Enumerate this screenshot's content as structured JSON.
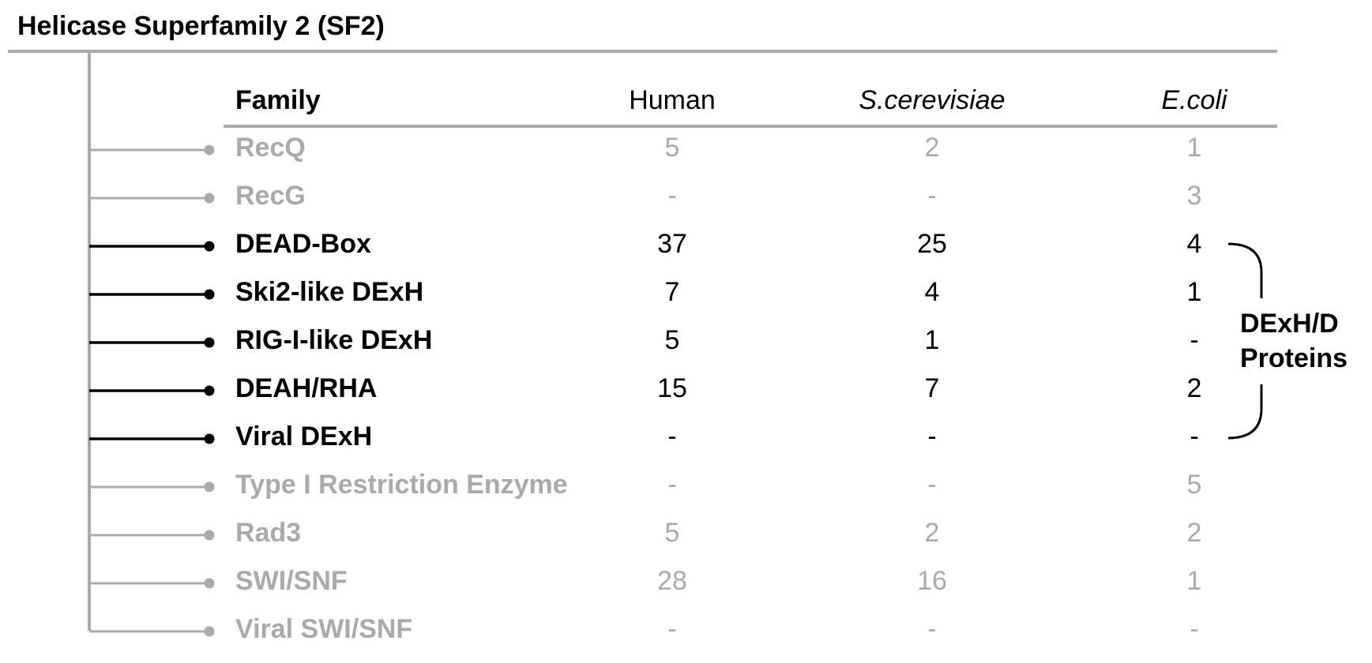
{
  "title": "Helicase Superfamily 2 (SF2)",
  "header": {
    "family": "Family",
    "human": "Human",
    "yeast": "S.cerevisiae",
    "ecoli": "E.coli"
  },
  "rows": [
    {
      "family": "RecQ",
      "human": "5",
      "yeast": "2",
      "ecoli": "1",
      "highlighted": false
    },
    {
      "family": "RecG",
      "human": "-",
      "yeast": "-",
      "ecoli": "3",
      "highlighted": false
    },
    {
      "family": "DEAD-Box",
      "human": "37",
      "yeast": "25",
      "ecoli": "4",
      "highlighted": true
    },
    {
      "family": "Ski2-like DExH",
      "human": "7",
      "yeast": "4",
      "ecoli": "1",
      "highlighted": true
    },
    {
      "family": "RIG-I-like DExH",
      "human": "5",
      "yeast": "1",
      "ecoli": "-",
      "highlighted": true
    },
    {
      "family": "DEAH/RHA",
      "human": "15",
      "yeast": "7",
      "ecoli": "2",
      "highlighted": true
    },
    {
      "family": "Viral DExH",
      "human": "-",
      "yeast": "-",
      "ecoli": "-",
      "highlighted": true
    },
    {
      "family": "Type I Restriction Enzyme",
      "human": "-",
      "yeast": "-",
      "ecoli": "5",
      "highlighted": false
    },
    {
      "family": "Rad3",
      "human": "5",
      "yeast": "2",
      "ecoli": "2",
      "highlighted": false
    },
    {
      "family": "SWI/SNF",
      "human": "28",
      "yeast": "16",
      "ecoli": "1",
      "highlighted": false
    },
    {
      "family": "Viral SWI/SNF",
      "human": "-",
      "yeast": "-",
      "ecoli": "-",
      "highlighted": false
    }
  ],
  "bracket": {
    "line1": "DExH/D",
    "line2": "Proteins"
  },
  "colors": {
    "highlight": "#000000",
    "faded": "#aaaaaa",
    "rule": "#aaaaaa"
  }
}
